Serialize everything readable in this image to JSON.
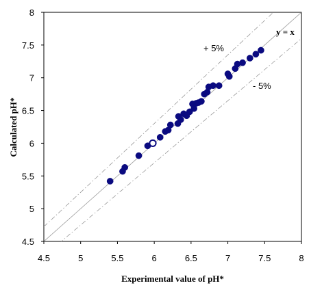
{
  "chart_data": {
    "type": "scatter",
    "xlabel": "Experimental value of pH*",
    "ylabel": "Calculated  pH*",
    "xlim": [
      4.5,
      8
    ],
    "ylim": [
      4.5,
      8
    ],
    "xticks": [
      "4.5",
      "5",
      "5.5",
      "6",
      "6.5",
      "7",
      "7.5",
      "8"
    ],
    "yticks": [
      "4.5",
      "5",
      "5.5",
      "6",
      "6.5",
      "7",
      "7.5",
      "8"
    ],
    "grid": false,
    "colors": {
      "points": "#0a0a80",
      "lines": "#999999"
    },
    "annotations": {
      "identity": "y = x",
      "upper": "+ 5%",
      "lower": "- 5%"
    },
    "reference_lines": [
      {
        "slope": 1.0,
        "style": "solid"
      },
      {
        "slope": 1.05,
        "style": "dash-dot"
      },
      {
        "slope": 0.95,
        "style": "dash-dot"
      }
    ],
    "points": [
      {
        "x": 5.4,
        "y": 5.42
      },
      {
        "x": 5.57,
        "y": 5.57
      },
      {
        "x": 5.6,
        "y": 5.63
      },
      {
        "x": 5.79,
        "y": 5.81
      },
      {
        "x": 5.91,
        "y": 5.96
      },
      {
        "x": 5.98,
        "y": 6.0,
        "hollow": true
      },
      {
        "x": 6.08,
        "y": 6.09
      },
      {
        "x": 6.15,
        "y": 6.18
      },
      {
        "x": 6.19,
        "y": 6.2
      },
      {
        "x": 6.22,
        "y": 6.28
      },
      {
        "x": 6.32,
        "y": 6.3
      },
      {
        "x": 6.33,
        "y": 6.41
      },
      {
        "x": 6.36,
        "y": 6.36
      },
      {
        "x": 6.4,
        "y": 6.45
      },
      {
        "x": 6.44,
        "y": 6.42
      },
      {
        "x": 6.48,
        "y": 6.48
      },
      {
        "x": 6.52,
        "y": 6.6
      },
      {
        "x": 6.54,
        "y": 6.53
      },
      {
        "x": 6.57,
        "y": 6.61
      },
      {
        "x": 6.6,
        "y": 6.62
      },
      {
        "x": 6.64,
        "y": 6.64
      },
      {
        "x": 6.68,
        "y": 6.75
      },
      {
        "x": 6.72,
        "y": 6.78
      },
      {
        "x": 6.74,
        "y": 6.86
      },
      {
        "x": 6.8,
        "y": 6.88
      },
      {
        "x": 6.88,
        "y": 6.88
      },
      {
        "x": 7.0,
        "y": 7.06
      },
      {
        "x": 7.02,
        "y": 7.02
      },
      {
        "x": 7.1,
        "y": 7.14
      },
      {
        "x": 7.13,
        "y": 7.21
      },
      {
        "x": 7.2,
        "y": 7.23
      },
      {
        "x": 7.3,
        "y": 7.3
      },
      {
        "x": 7.38,
        "y": 7.36
      },
      {
        "x": 7.45,
        "y": 7.42
      }
    ]
  }
}
